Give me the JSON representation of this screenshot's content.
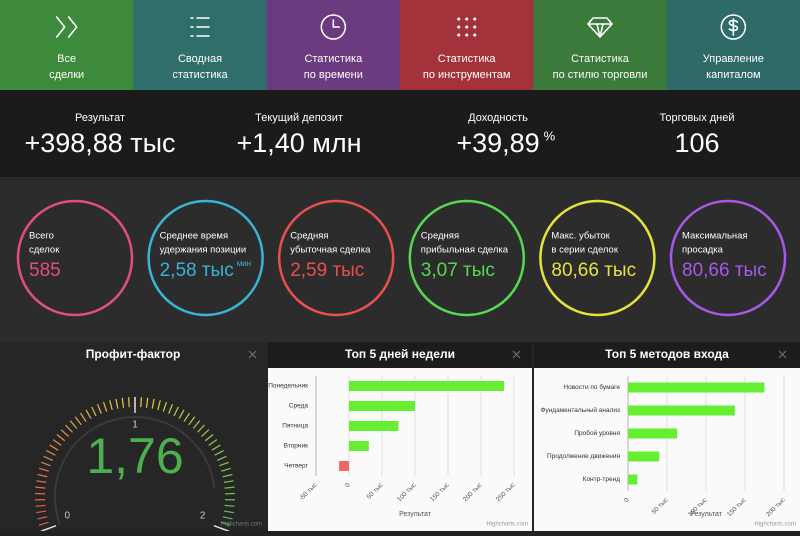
{
  "nav": [
    {
      "label": [
        "Все",
        "сделки"
      ],
      "color": "#3d8a3c"
    },
    {
      "label": [
        "Сводная",
        "статистика"
      ],
      "color": "#2f6e6b"
    },
    {
      "label": [
        "Статистика",
        "по времени"
      ],
      "color": "#6b3a7f"
    },
    {
      "label": [
        "Статистика",
        "по инструментам"
      ],
      "color": "#a3323b"
    },
    {
      "label": [
        "Статистика",
        "по стилю торговли"
      ],
      "color": "#3b7a3a"
    },
    {
      "label": [
        "Управление",
        "капиталом"
      ],
      "color": "#2e6a68"
    }
  ],
  "stats": [
    {
      "label": "Результат",
      "value": "+398,88 тыс"
    },
    {
      "label": "Текущий депозит",
      "value": "+1,40 млн"
    },
    {
      "label": "Доходность",
      "value": "+39,89",
      "unit": "%"
    },
    {
      "label": "Торговых дней",
      "value": "106"
    }
  ],
  "circles": [
    {
      "label": [
        "Всего",
        "сделок"
      ],
      "value": "585",
      "color": "#e0507a"
    },
    {
      "label": [
        "Среднее время",
        "удержания позиции"
      ],
      "value": "2,58 тыс",
      "unit": "мин",
      "color": "#3ab4d4"
    },
    {
      "label": [
        "Средняя",
        "убыточная сделка"
      ],
      "value": "2,59 тыс",
      "color": "#e85050"
    },
    {
      "label": [
        "Средняя",
        "прибыльная сделка"
      ],
      "value": "3,07 тыс",
      "color": "#58d850"
    },
    {
      "label": [
        "Макс. убыток",
        "в серии сделок"
      ],
      "value": "80,66 тыс",
      "color": "#e6e23c"
    },
    {
      "label": [
        "Максимальная",
        "просадка"
      ],
      "value": "80,66 тыс",
      "color": "#a858e8"
    }
  ],
  "chart_data": [
    {
      "type": "gauge",
      "title": "Профит-фактор",
      "value": 1.76,
      "value_label": "1,76",
      "ylim": [
        0,
        2
      ],
      "yticks": [
        0,
        1,
        2
      ],
      "color": "#4caf50",
      "credits": "Highcharts.com"
    },
    {
      "type": "bar",
      "title": "Топ 5 дней недели",
      "x_label": "Результат",
      "categories": [
        "Понедельник",
        "Среда",
        "Пятница",
        "Вторник",
        "Четверг"
      ],
      "values": [
        235,
        100,
        75,
        30,
        -15
      ],
      "color": "#66ee33",
      "negative_color": "#f06666",
      "xlim": [
        -50,
        250
      ],
      "xticks": [
        {
          "value": -50,
          "label": "-50 тыс"
        },
        0,
        {
          "value": 50,
          "label": "50 тыс"
        },
        {
          "value": 100,
          "label": "100 тыс"
        },
        {
          "value": 150,
          "label": "150 тыс"
        },
        {
          "value": 200,
          "label": "200 тыс"
        },
        {
          "value": 250,
          "label": "250 тыс"
        }
      ],
      "grid": true,
      "credits": "Highcharts.com"
    },
    {
      "type": "bar",
      "title": "Топ 5 методов входа",
      "x_label": "Результат",
      "categories": [
        "Новости по бумаге",
        "Фундаментальный анализ",
        "Пробой уровня",
        "Продолжение движения",
        "Контр-тренд"
      ],
      "values": [
        175,
        137,
        63,
        40,
        12
      ],
      "color": "#66ee33",
      "negative_color": "#f06666",
      "xlim": [
        0,
        200
      ],
      "xticks": [
        0,
        {
          "value": 50,
          "label": "50 тыс"
        },
        {
          "value": 100,
          "label": "100 тыс"
        },
        {
          "value": 150,
          "label": "150 тыс"
        },
        {
          "value": 200,
          "label": "200 тыс"
        }
      ],
      "grid": true,
      "credits": "Highcharts.com"
    }
  ]
}
